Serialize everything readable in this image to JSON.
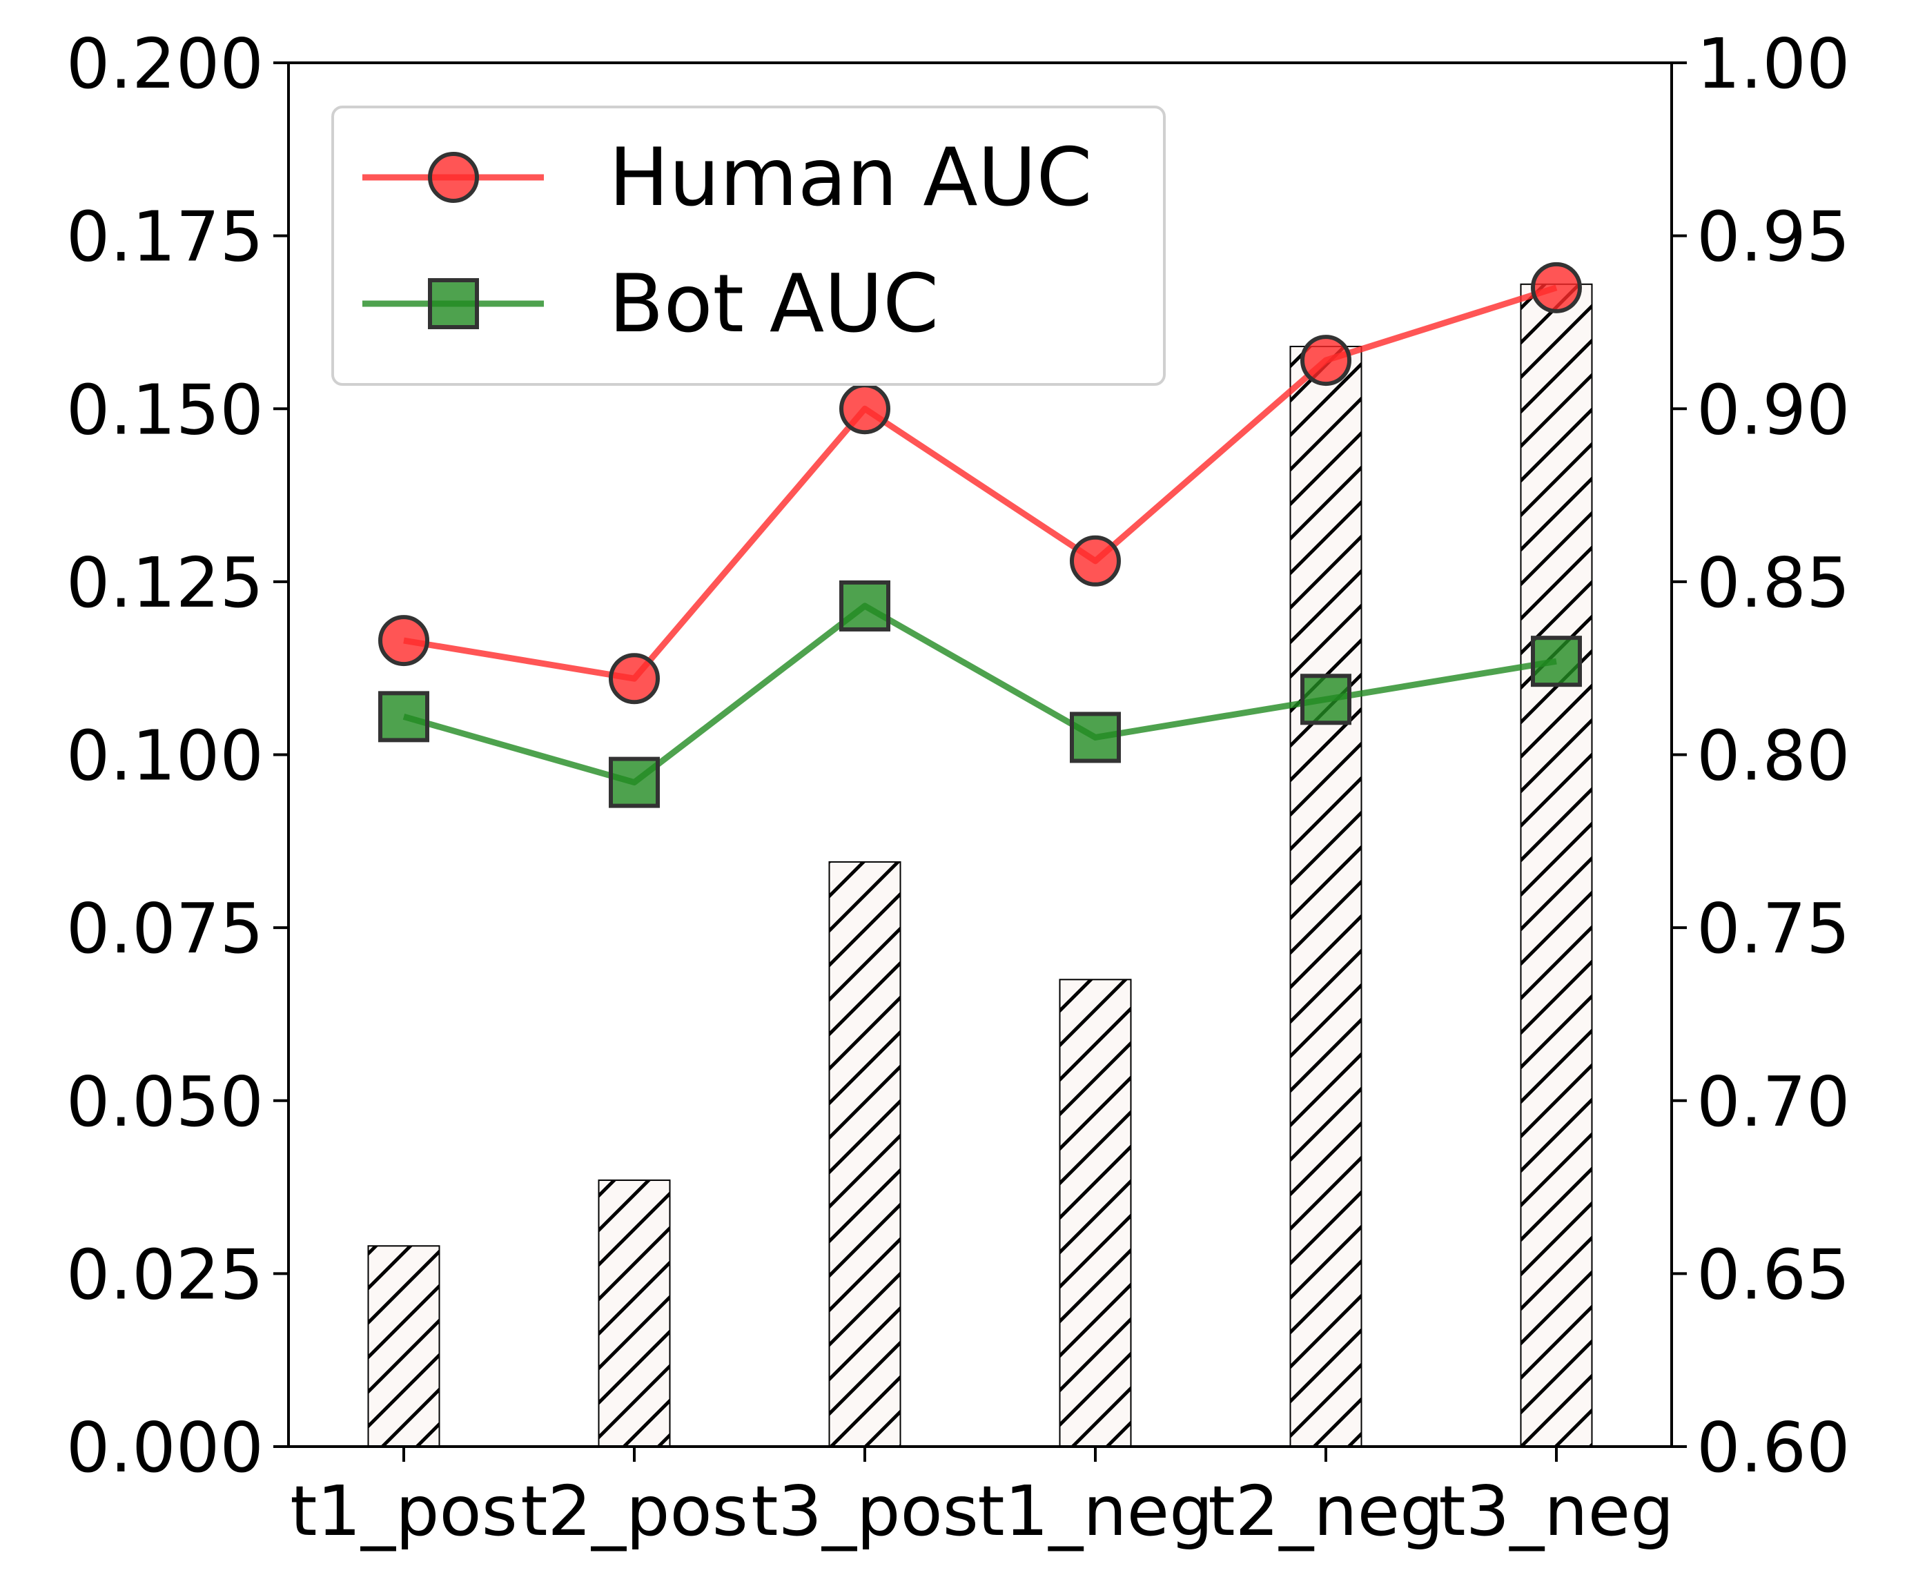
{
  "chart_data": {
    "type": "bar",
    "categories": [
      "t1_pos",
      "t2_pos",
      "t3_pos",
      "t1_neg",
      "t2_neg",
      "t3_neg"
    ],
    "bars": {
      "values": [
        0.029,
        0.0385,
        0.0845,
        0.0675,
        0.159,
        0.168
      ],
      "axis": "left",
      "hatch": "diagonal",
      "fill_color": "#fcf8f6",
      "edge_color": "#000000"
    },
    "series": [
      {
        "name": "Human AUC",
        "type": "line",
        "axis": "right",
        "marker": "circle",
        "color": "#ff2a2a",
        "values": [
          0.833,
          0.822,
          0.9,
          0.856,
          0.914,
          0.935
        ]
      },
      {
        "name": "Bot AUC",
        "type": "line",
        "axis": "right",
        "marker": "square",
        "color": "#228b22",
        "values": [
          0.811,
          0.792,
          0.843,
          0.805,
          0.816,
          0.827
        ]
      }
    ],
    "y_left": {
      "lim": [
        0.0,
        0.2
      ],
      "ticks": [
        0.0,
        0.025,
        0.05,
        0.075,
        0.1,
        0.125,
        0.15,
        0.175,
        0.2
      ],
      "tick_labels": [
        "0.000",
        "0.025",
        "0.050",
        "0.075",
        "0.100",
        "0.125",
        "0.150",
        "0.175",
        "0.200"
      ]
    },
    "y_right": {
      "lim": [
        0.6,
        1.0
      ],
      "ticks": [
        0.6,
        0.65,
        0.7,
        0.75,
        0.8,
        0.85,
        0.9,
        0.95,
        1.0
      ],
      "tick_labels": [
        "0.60",
        "0.65",
        "0.70",
        "0.75",
        "0.80",
        "0.85",
        "0.90",
        "0.95",
        "1.00"
      ]
    },
    "title": "",
    "xlabel": "",
    "ylabel": "",
    "legend": {
      "position": "top-left",
      "entries": [
        "Human AUC",
        "Bot AUC"
      ]
    },
    "grid": false
  }
}
